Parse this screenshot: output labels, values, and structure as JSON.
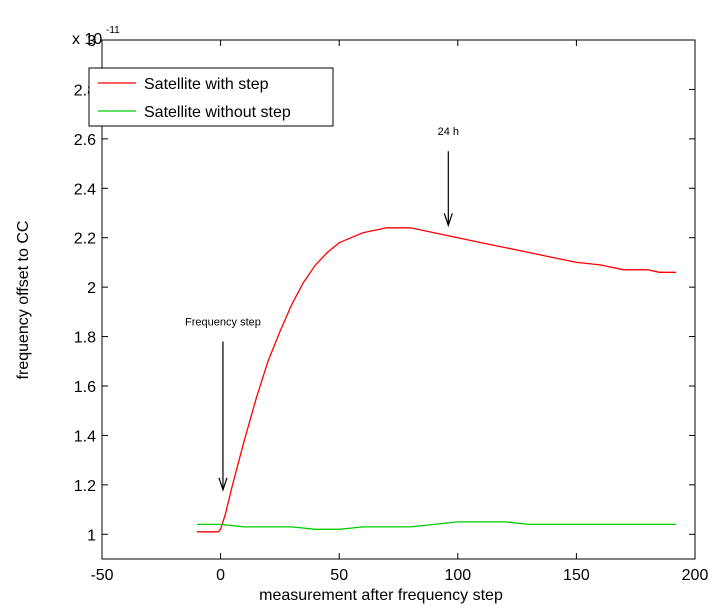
{
  "chart_data": {
    "type": "line",
    "title": "",
    "xlabel": "measurement after frequency step",
    "ylabel": "frequency offset to CC",
    "y_exponent_base": "x 10",
    "y_exponent_power": "-11",
    "xlim": [
      -50,
      200
    ],
    "ylim": [
      0.9,
      3.0
    ],
    "x_ticks": [
      -50,
      0,
      50,
      100,
      150,
      200
    ],
    "x_tick_labels": [
      "-50",
      "0",
      "50",
      "100",
      "150",
      "200"
    ],
    "y_ticks": [
      1,
      1.2,
      1.4,
      1.6,
      1.8,
      2,
      2.2,
      2.4,
      2.6,
      2.8,
      3
    ],
    "y_tick_labels": [
      "1",
      "1.2",
      "1.4",
      "1.6",
      "1.8",
      "2",
      "2.2",
      "2.4",
      "2.6",
      "2.8",
      "3"
    ],
    "grid": false,
    "legend_position": "top-left",
    "series": [
      {
        "name": "Satellite with step",
        "color": "#ff0000",
        "x": [
          -10,
          -5,
          -1,
          0,
          2,
          5,
          10,
          15,
          20,
          25,
          30,
          35,
          40,
          45,
          50,
          55,
          60,
          65,
          70,
          75,
          80,
          85,
          90,
          95,
          100,
          110,
          120,
          130,
          140,
          150,
          160,
          170,
          180,
          185,
          192
        ],
        "y": [
          1.01,
          1.01,
          1.01,
          1.02,
          1.08,
          1.2,
          1.38,
          1.55,
          1.7,
          1.82,
          1.93,
          2.02,
          2.09,
          2.14,
          2.18,
          2.2,
          2.22,
          2.23,
          2.24,
          2.24,
          2.24,
          2.23,
          2.22,
          2.21,
          2.2,
          2.18,
          2.16,
          2.14,
          2.12,
          2.1,
          2.09,
          2.07,
          2.07,
          2.06,
          2.06
        ]
      },
      {
        "name": "Satellite without step",
        "color": "#00cc00",
        "x": [
          -10,
          0,
          10,
          20,
          30,
          40,
          50,
          60,
          70,
          80,
          90,
          100,
          105,
          110,
          120,
          130,
          140,
          150,
          160,
          170,
          180,
          192
        ],
        "y": [
          1.04,
          1.04,
          1.03,
          1.03,
          1.03,
          1.02,
          1.02,
          1.03,
          1.03,
          1.03,
          1.04,
          1.05,
          1.05,
          1.05,
          1.05,
          1.04,
          1.04,
          1.04,
          1.04,
          1.04,
          1.04,
          1.04
        ]
      }
    ],
    "annotations": [
      {
        "text": "24 h",
        "arrow_x": 96,
        "arrow_y_top": 2.55,
        "arrow_y_tip": 2.25
      },
      {
        "text": "Frequency step",
        "arrow_x": 1,
        "arrow_y_top": 1.78,
        "arrow_y_tip": 1.18
      }
    ]
  }
}
